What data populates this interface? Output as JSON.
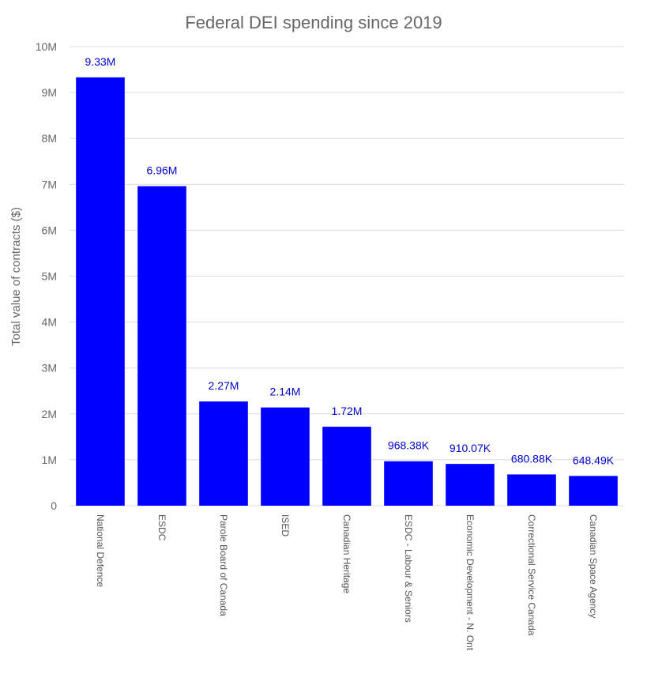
{
  "chart_data": {
    "type": "bar",
    "title": "Federal DEI spending since 2019",
    "xlabel": "",
    "ylabel": "Total value of contracts ($)",
    "ylim": [
      0,
      10000000
    ],
    "yticks": [
      0,
      1000000,
      2000000,
      3000000,
      4000000,
      5000000,
      6000000,
      7000000,
      8000000,
      9000000,
      10000000
    ],
    "ytick_labels": [
      "0",
      "1M",
      "2M",
      "3M",
      "4M",
      "5M",
      "6M",
      "7M",
      "8M",
      "9M",
      "10M"
    ],
    "grid": true,
    "categories": [
      "National Defence",
      "ESDC",
      "Parole Board of Canada",
      "ISED",
      "Canadian Heritage",
      "ESDC - Labour & Seniors",
      "Economic Development - N. Ont",
      "Correctional Service Canada",
      "Canadian Space Agency"
    ],
    "values": [
      9330000,
      6960000,
      2270000,
      2140000,
      1720000,
      968380,
      910070,
      680880,
      648490
    ],
    "data_labels": [
      "9.33M",
      "6.96M",
      "2.27M",
      "2.14M",
      "1.72M",
      "968.38K",
      "910.07K",
      "680.88K",
      "648.49K"
    ],
    "bar_color": "#0000ff",
    "label_color": "#0000cc"
  }
}
